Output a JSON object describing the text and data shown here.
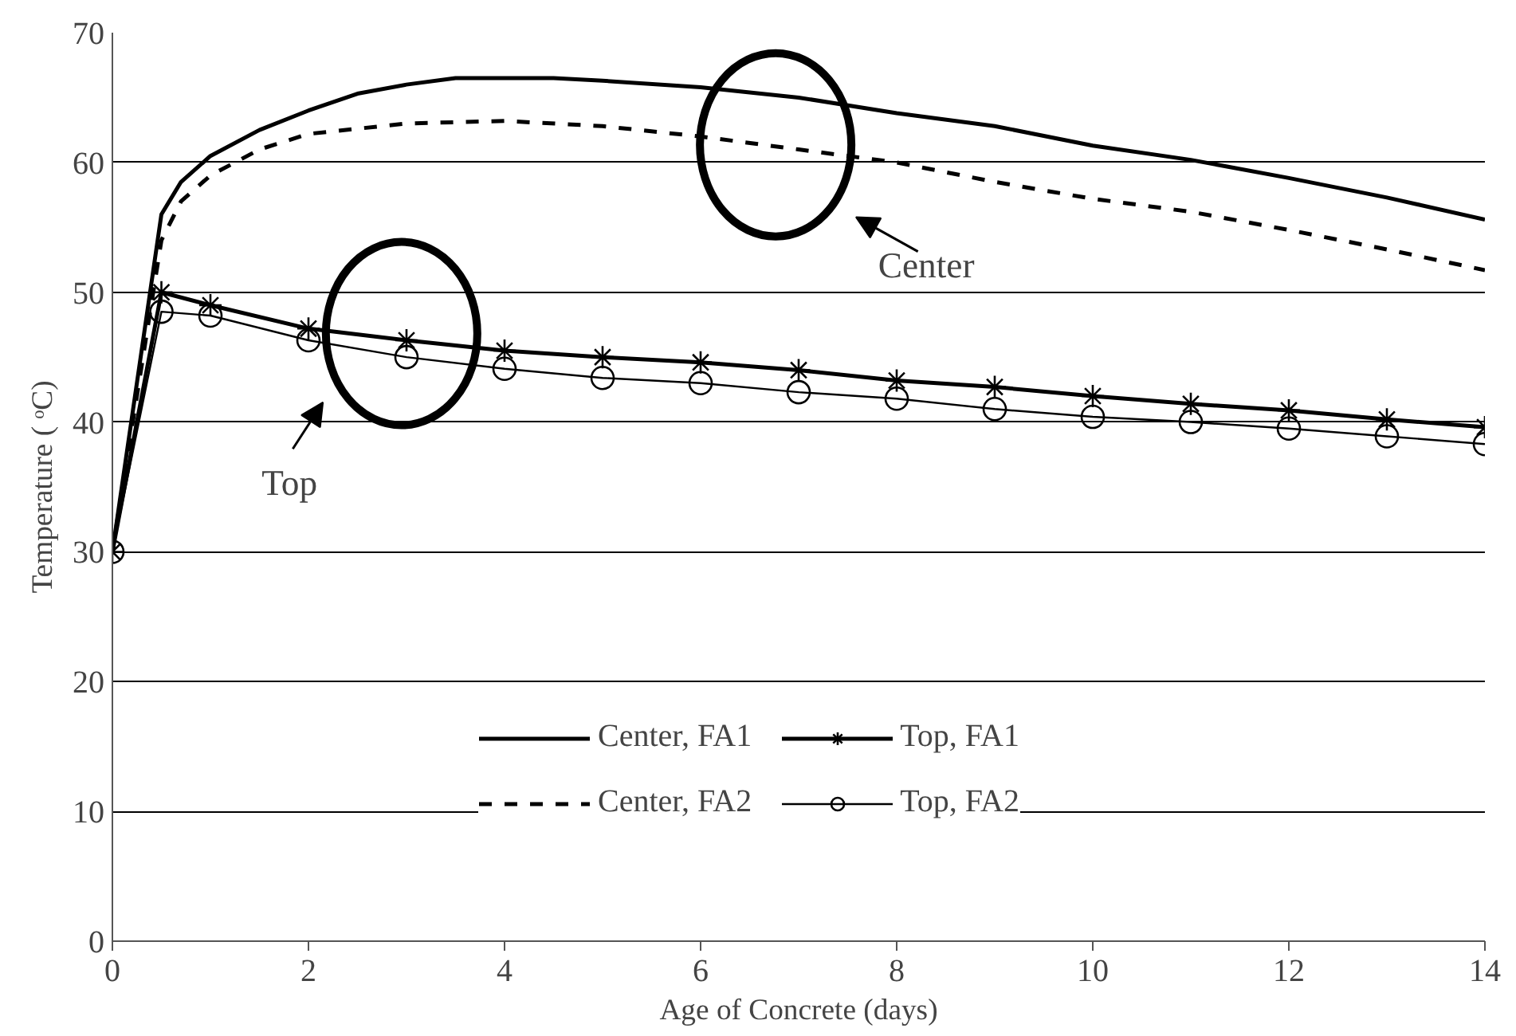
{
  "chart_data": {
    "type": "line",
    "xlabel": "Age of Concrete (days)",
    "ylabel": "Temperature ( ᵒC)",
    "xlim": [
      0,
      14
    ],
    "xticks": [
      0,
      2,
      4,
      6,
      8,
      10,
      12,
      14
    ],
    "ylim": [
      0,
      70
    ],
    "yticks": [
      0,
      10,
      20,
      30,
      40,
      50,
      60,
      70
    ],
    "grid": "y",
    "legend": "bottom",
    "series": [
      {
        "name": "Center, FA1",
        "color": "#000000",
        "line_style": "solid",
        "marker": "none",
        "x": [
          0,
          0.5,
          0.7,
          1,
          1.5,
          2,
          2.5,
          3,
          3.5,
          4,
          4.5,
          5,
          6,
          7,
          8,
          9,
          10,
          11,
          12,
          13,
          14
        ],
        "values": [
          30,
          56,
          58.5,
          60.5,
          62.5,
          64,
          65.3,
          66,
          66.5,
          66.5,
          66.5,
          66.3,
          65.8,
          65,
          63.8,
          62.8,
          61.3,
          60.2,
          58.8,
          57.3,
          55.6
        ]
      },
      {
        "name": "Top, FA1",
        "color": "#000000",
        "line_style": "solid",
        "marker": "cross",
        "x": [
          0,
          0.5,
          1,
          2,
          3,
          4,
          5,
          6,
          7,
          8,
          9,
          10,
          11,
          12,
          13,
          14
        ],
        "values": [
          30,
          50,
          49,
          47.2,
          46.3,
          45.5,
          45,
          44.6,
          44,
          43.2,
          42.7,
          42,
          41.4,
          40.9,
          40.2,
          39.6
        ]
      },
      {
        "name": "Center, FA2",
        "color": "#000000",
        "line_style": "dashed",
        "marker": "none",
        "x": [
          0,
          0.5,
          0.7,
          1,
          1.5,
          2,
          3,
          4,
          5,
          6,
          7,
          8,
          9,
          10,
          11,
          12,
          13,
          14
        ],
        "values": [
          30,
          54,
          57,
          59,
          61,
          62.2,
          63,
          63.2,
          62.8,
          62,
          61,
          60,
          58.5,
          57.2,
          56.2,
          54.8,
          53.3,
          51.7
        ]
      },
      {
        "name": "Top, FA2",
        "color": "#000000",
        "line_style": "solid",
        "marker": "circle",
        "x": [
          0,
          0.5,
          1,
          2,
          3,
          4,
          5,
          6,
          7,
          8,
          9,
          10,
          11,
          12,
          13,
          14
        ],
        "values": [
          30,
          48.5,
          48.2,
          46.3,
          45,
          44.1,
          43.4,
          43,
          42.3,
          41.8,
          41,
          40.4,
          40,
          39.5,
          38.9,
          38.3
        ]
      }
    ],
    "annotations": [
      "Center",
      "Top"
    ]
  }
}
